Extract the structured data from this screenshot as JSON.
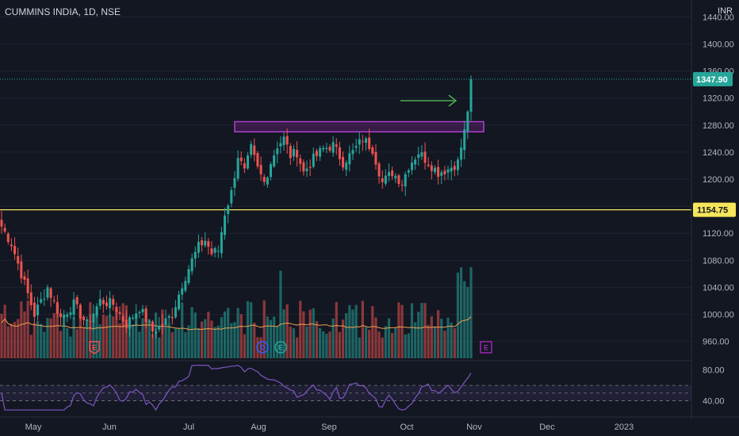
{
  "header": {
    "symbol": "CUMMINS INDIA, 1D, NSE",
    "currency": "INR"
  },
  "price_tags": {
    "last": "1347.90",
    "support": "1154.75"
  },
  "event_markers": [
    "E",
    "D",
    "E",
    "E"
  ],
  "colors": {
    "up": "#26a69a",
    "down": "#ef5350",
    "support": "#f5e65a",
    "band": "#9c27b0",
    "arrow": "#4caf50",
    "ma": "#f0a050",
    "rsi": "#7e57c2"
  },
  "chart_data": {
    "type": "candlestick",
    "price_axis": {
      "ylim": [
        935,
        1465
      ],
      "ticks": [
        960,
        1000,
        1040,
        1080,
        1120,
        1160,
        1200,
        1240,
        1280,
        1320,
        1360,
        1400,
        1440
      ],
      "labels": [
        "960.00",
        "1000.00",
        "1040.00",
        "1080.00",
        "1120.00",
        "1160.00",
        "1200.00",
        "1240.00",
        "1280.00",
        "1320.00",
        "1360.00",
        "1400.00",
        "1440.00"
      ]
    },
    "time_axis": {
      "labels": [
        "May",
        "Jun",
        "Jul",
        "Aug",
        "Sep",
        "Oct",
        "Nov",
        "Dec",
        "2023"
      ]
    },
    "support_level": 1154.75,
    "resistance_zone": [
      1270,
      1285
    ],
    "last_price": 1347.9,
    "rsi_axis": {
      "labels": [
        "80.00",
        "40.00"
      ],
      "ylim": [
        20,
        90
      ],
      "upper": 60,
      "lower": 40
    },
    "anchors": [
      {
        "i": 0,
        "p": 1130
      },
      {
        "i": 3,
        "p": 1105
      },
      {
        "i": 6,
        "p": 1060
      },
      {
        "i": 10,
        "p": 1000
      },
      {
        "i": 14,
        "p": 1040
      },
      {
        "i": 18,
        "p": 995
      },
      {
        "i": 22,
        "p": 1015
      },
      {
        "i": 26,
        "p": 985
      },
      {
        "i": 30,
        "p": 1020
      },
      {
        "i": 34,
        "p": 1015
      },
      {
        "i": 38,
        "p": 985
      },
      {
        "i": 42,
        "p": 1010
      },
      {
        "i": 46,
        "p": 975
      },
      {
        "i": 49,
        "p": 985
      },
      {
        "i": 52,
        "p": 1000
      },
      {
        "i": 55,
        "p": 1045
      },
      {
        "i": 58,
        "p": 1080
      },
      {
        "i": 60,
        "p": 1100
      },
      {
        "i": 62,
        "p": 1110
      },
      {
        "i": 64,
        "p": 1090
      },
      {
        "i": 66,
        "p": 1095
      },
      {
        "i": 68,
        "p": 1150
      },
      {
        "i": 70,
        "p": 1180
      },
      {
        "i": 72,
        "p": 1235
      },
      {
        "i": 74,
        "p": 1210
      },
      {
        "i": 76,
        "p": 1245
      },
      {
        "i": 78,
        "p": 1215
      },
      {
        "i": 80,
        "p": 1195
      },
      {
        "i": 82,
        "p": 1225
      },
      {
        "i": 84,
        "p": 1250
      },
      {
        "i": 86,
        "p": 1260
      },
      {
        "i": 88,
        "p": 1235
      },
      {
        "i": 90,
        "p": 1240
      },
      {
        "i": 92,
        "p": 1210
      },
      {
        "i": 95,
        "p": 1230
      },
      {
        "i": 98,
        "p": 1245
      },
      {
        "i": 101,
        "p": 1250
      },
      {
        "i": 104,
        "p": 1225
      },
      {
        "i": 107,
        "p": 1240
      },
      {
        "i": 110,
        "p": 1260
      },
      {
        "i": 113,
        "p": 1245
      },
      {
        "i": 116,
        "p": 1195
      },
      {
        "i": 119,
        "p": 1210
      },
      {
        "i": 122,
        "p": 1195
      },
      {
        "i": 124,
        "p": 1220
      },
      {
        "i": 127,
        "p": 1240
      },
      {
        "i": 130,
        "p": 1225
      },
      {
        "i": 133,
        "p": 1210
      },
      {
        "i": 136,
        "p": 1215
      },
      {
        "i": 139,
        "p": 1225
      },
      {
        "i": 141,
        "p": 1270
      },
      {
        "i": 142,
        "p": 1300
      },
      {
        "i": 143,
        "p": 1347.9
      }
    ]
  }
}
